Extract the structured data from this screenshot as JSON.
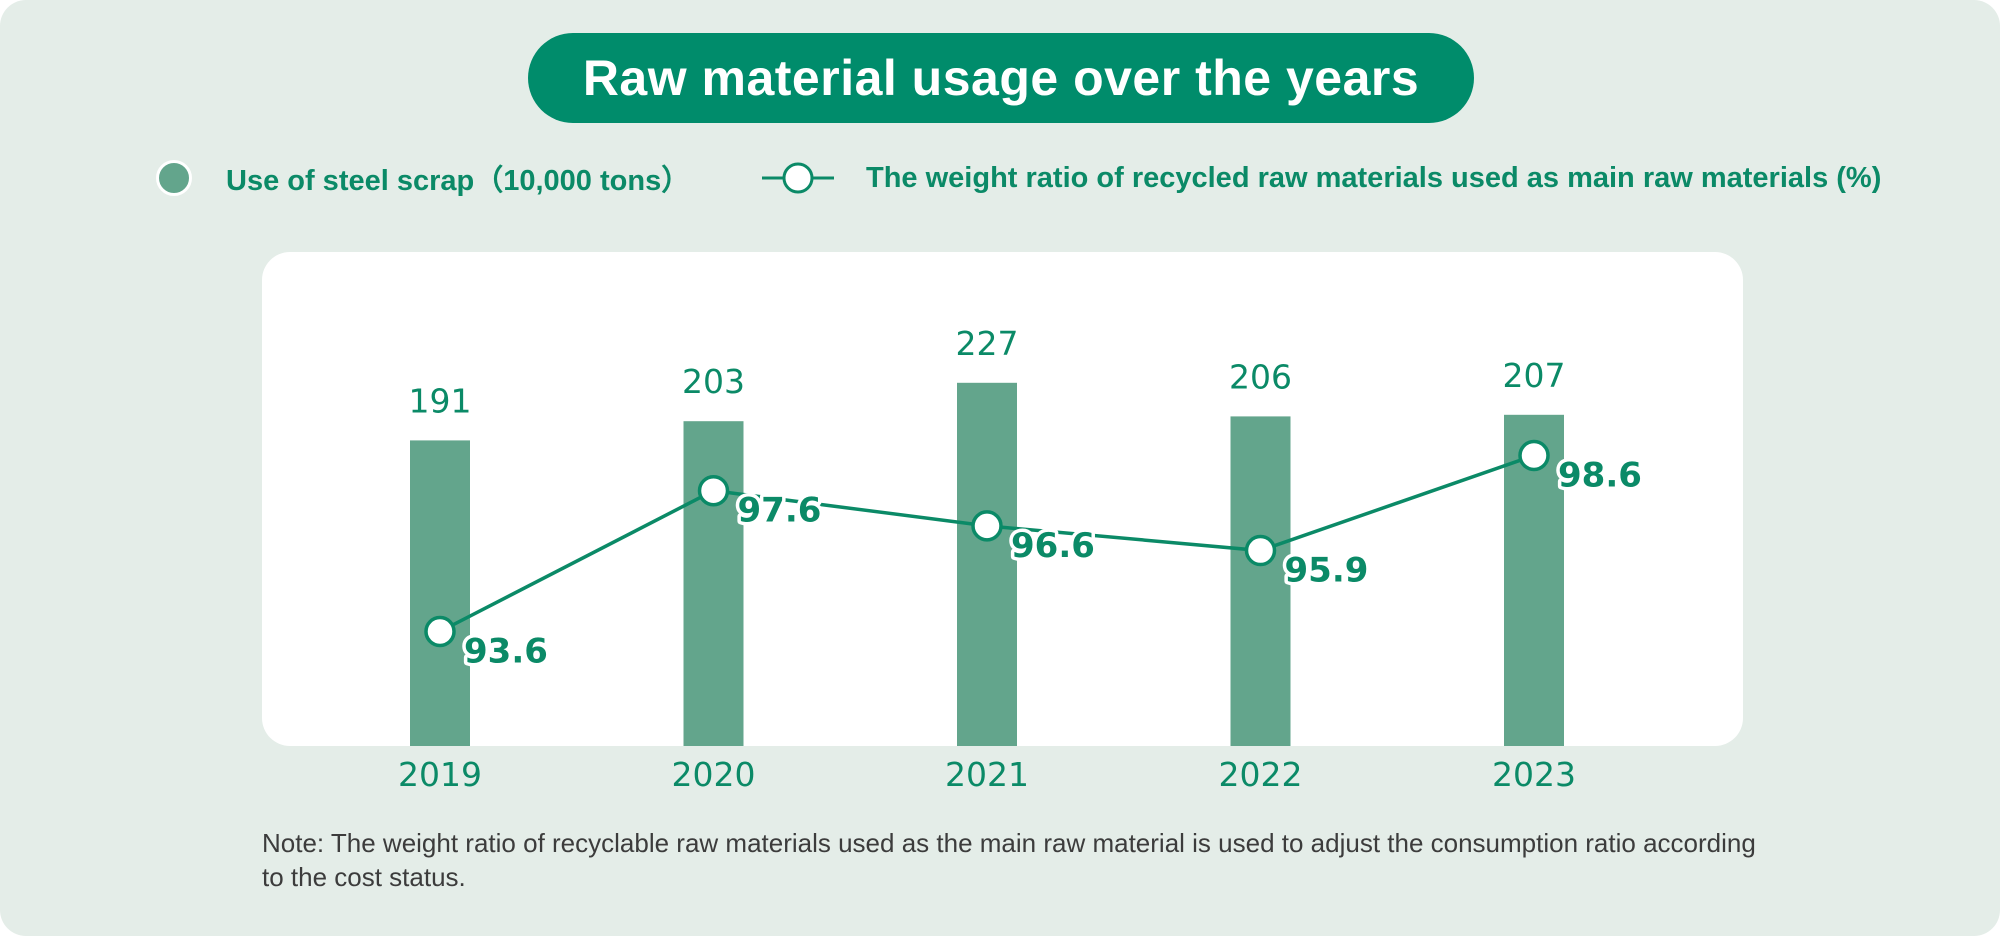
{
  "title": "Raw material usage over the years",
  "legend": {
    "bar_label": "Use of steel scrap（10,000 tons）",
    "line_label": "The weight ratio of recycled raw materials used as main raw materials (%)"
  },
  "note": "Note: The weight ratio of recyclable raw materials used as the main raw material is used to adjust the consumption ratio according to the cost status.",
  "colors": {
    "background": "#e4ede8",
    "title_bg": "#008c6b",
    "bar": "#63a58c",
    "line": "#0b8a67",
    "text_accent": "#0b8a67"
  },
  "chart_data": {
    "type": "bar+line",
    "title": "Raw material usage over the years",
    "categories": [
      "2019",
      "2020",
      "2021",
      "2022",
      "2023"
    ],
    "series": [
      {
        "name": "Use of steel scrap（10,000 tons）",
        "type": "bar",
        "values": [
          191,
          203,
          227,
          206,
          207
        ],
        "value_labels": [
          "191",
          "203",
          "227",
          "206",
          "207"
        ],
        "ylim": [
          0,
          250
        ]
      },
      {
        "name": "The weight ratio of recycled raw materials used as main raw materials (%)",
        "type": "line",
        "values": [
          93.6,
          97.6,
          96.6,
          95.9,
          98.6
        ],
        "value_labels": [
          "93.6",
          "97.6",
          "96.6",
          "95.9",
          "98.6"
        ],
        "ylim": [
          90,
          100
        ]
      }
    ],
    "xlabel": "",
    "ylabel": "",
    "grid": false
  }
}
